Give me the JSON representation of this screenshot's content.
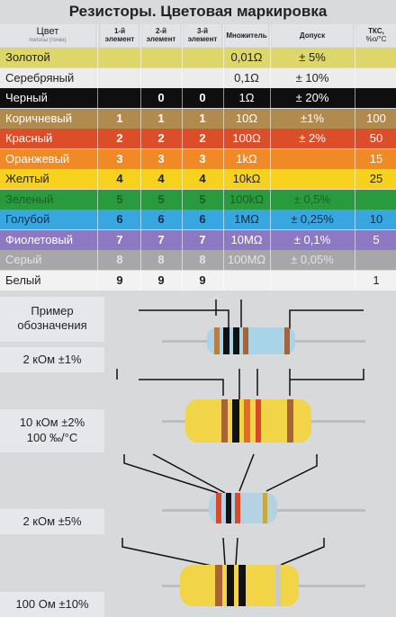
{
  "title": "Резисторы. Цветовая маркировка",
  "headers": {
    "color": "Цвет",
    "color_sub": "полосы (точки)",
    "d1": "1-й",
    "d1_sub": "элемент",
    "d2": "2-й",
    "d2_sub": "элемент",
    "d3": "3-й",
    "d3_sub": "элемент",
    "mult": "Множитель",
    "tol": "Допуск",
    "tks": "ТКС,",
    "tks_unit": "%о/°С"
  },
  "rows": [
    {
      "name": "Золотой",
      "d1": "",
      "d2": "",
      "d3": "",
      "mult": "0,01Ω",
      "tol": "± 5%",
      "tks": "",
      "bg": "#ddd66a",
      "fg": "#222222"
    },
    {
      "name": "Серебряный",
      "d1": "",
      "d2": "",
      "d3": "",
      "mult": "0,1Ω",
      "tol": "± 10%",
      "tks": "",
      "bg": "#ececec",
      "fg": "#222222"
    },
    {
      "name": "Черный",
      "d1": "",
      "d2": "0",
      "d3": "0",
      "mult": "1Ω",
      "tol": "± 20%",
      "tks": "",
      "bg": "#0f0f0f",
      "fg": "#ffffff"
    },
    {
      "name": "Коричневый",
      "d1": "1",
      "d2": "1",
      "d3": "1",
      "mult": "10Ω",
      "tol": "±1%",
      "tks": "100",
      "bg": "#b08b4f",
      "fg": "#ffffff"
    },
    {
      "name": "Красный",
      "d1": "2",
      "d2": "2",
      "d3": "2",
      "mult": "100Ω",
      "tol": "± 2%",
      "tks": "50",
      "bg": "#dc4d2a",
      "fg": "#ffffff"
    },
    {
      "name": "Оранжевый",
      "d1": "3",
      "d2": "3",
      "d3": "3",
      "mult": "1kΩ",
      "tol": "",
      "tks": "15",
      "bg": "#f08a26",
      "fg": "#ffffff"
    },
    {
      "name": "Желтый",
      "d1": "4",
      "d2": "4",
      "d3": "4",
      "mult": "10kΩ",
      "tol": "",
      "tks": "25",
      "bg": "#f6d21e",
      "fg": "#222222"
    },
    {
      "name": "Зеленый",
      "d1": "5",
      "d2": "5",
      "d3": "5",
      "mult": "100kΩ",
      "tol": "± 0,5%",
      "tks": "",
      "bg": "#2a9a3e",
      "fg": "#1d5e27"
    },
    {
      "name": "Голубой",
      "d1": "6",
      "d2": "6",
      "d3": "6",
      "mult": "1MΩ",
      "tol": "± 0,25%",
      "tks": "10",
      "bg": "#38a6df",
      "fg": "#1a2a44"
    },
    {
      "name": "Фиолетовый",
      "d1": "7",
      "d2": "7",
      "d3": "7",
      "mult": "10MΩ",
      "tol": "± 0,1%",
      "tks": "5",
      "bg": "#8d78c4",
      "fg": "#ffffff"
    },
    {
      "name": "Серый",
      "d1": "8",
      "d2": "8",
      "d3": "8",
      "mult": "100MΩ",
      "tol": "± 0,05%",
      "tks": "",
      "bg": "#a7a6a8",
      "fg": "#e4e4e4"
    },
    {
      "name": "Белый",
      "d1": "9",
      "d2": "9",
      "d3": "9",
      "mult": "",
      "tol": "",
      "tks": "1",
      "bg": "#f2f2f2",
      "fg": "#222222"
    }
  ],
  "examples": {
    "heading": "Пример обозначения",
    "e1": "2 кОм ±1%",
    "e2_line1": "10 кОм ±2%",
    "e2_line2": "100 ‰/°C",
    "e3": "2 кОм ±5%",
    "e4": "100 Ом ±10%"
  },
  "colors": {
    "label_bg": "#e6e7ea",
    "illustration_bg": "#d8d9db",
    "body_blue": "#a9d3e6",
    "body_yellow": "#f2d449",
    "body_grey_blue": "#b4d2e1"
  }
}
